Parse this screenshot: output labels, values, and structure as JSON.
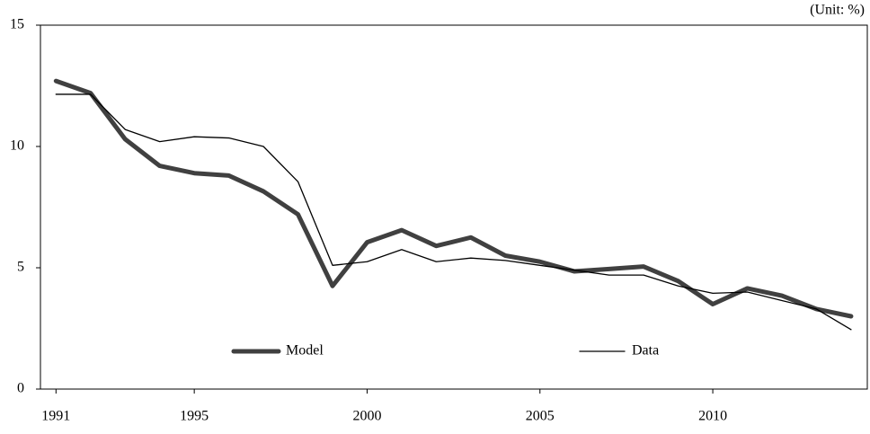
{
  "chart_data": {
    "type": "line",
    "annotation": "(Unit: %)",
    "x": [
      1991,
      1992,
      1993,
      1994,
      1995,
      1996,
      1997,
      1998,
      1999,
      2000,
      2001,
      2002,
      2003,
      2004,
      2005,
      2006,
      2007,
      2008,
      2009,
      2010,
      2011,
      2012,
      2013,
      2014
    ],
    "series": [
      {
        "name": "Model",
        "color": "#404040",
        "width": 5,
        "values": [
          12.7,
          12.2,
          10.3,
          9.2,
          8.9,
          8.8,
          8.15,
          7.2,
          4.25,
          6.05,
          6.55,
          5.9,
          6.25,
          5.5,
          5.25,
          4.85,
          4.95,
          5.05,
          4.45,
          3.5,
          4.15,
          3.85,
          3.3,
          3.0
        ]
      },
      {
        "name": "Data",
        "color": "#000000",
        "width": 1.3,
        "values": [
          12.15,
          12.15,
          10.7,
          10.2,
          10.4,
          10.35,
          10.0,
          8.55,
          5.1,
          5.25,
          5.75,
          5.25,
          5.4,
          5.3,
          5.1,
          4.9,
          4.7,
          4.7,
          4.25,
          3.95,
          4.0,
          3.65,
          3.3,
          2.45
        ]
      }
    ],
    "xlim": [
      1990.55,
      2014.47
    ],
    "xticks": [
      1991,
      1995,
      2000,
      2005,
      2010
    ],
    "ylim": [
      0,
      15
    ],
    "yticks": [
      0,
      5,
      10,
      15
    ],
    "grid": false
  }
}
